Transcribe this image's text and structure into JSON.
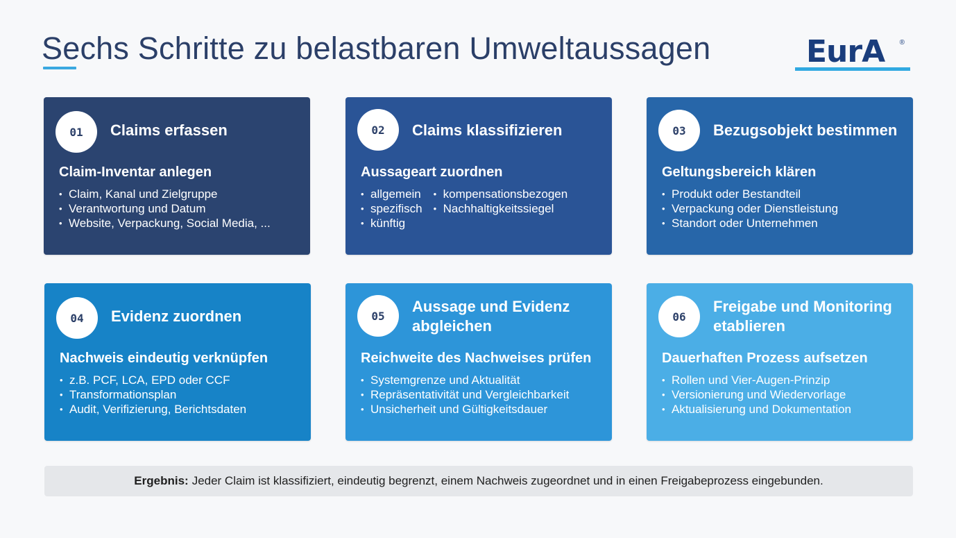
{
  "title": "Sechs Schritte zu belastbaren Umweltaussagen",
  "logo": {
    "text": "EurA",
    "reg": "®"
  },
  "colors": {
    "step1": "#2b4470",
    "step2": "#2a5496",
    "step3": "#2766a9",
    "step4": "#1783c7",
    "step5": "#2d95d9",
    "step6": "#4baee6",
    "accent": "#31a9e1",
    "title": "#2b3f68"
  },
  "steps": [
    {
      "num": "01",
      "title": "Claims erfassen",
      "subtitle": "Claim-Inventar anlegen",
      "bullets": [
        "Claim, Kanal und Zielgruppe",
        "Verantwortung und Datum",
        "Website, Verpackung, Social Media, ..."
      ]
    },
    {
      "num": "02",
      "title": "Claims klassifizieren",
      "subtitle": "Aussageart zuordnen",
      "bullets_col1": [
        "allgemein",
        "spezifisch",
        "künftig"
      ],
      "bullets_col2": [
        "kompensationsbezogen",
        "Nachhaltigkeitssiegel"
      ]
    },
    {
      "num": "03",
      "title": "Bezugsobjekt bestimmen",
      "subtitle": "Geltungsbereich klären",
      "bullets": [
        "Produkt oder Bestandteil",
        "Verpackung oder Dienstleistung",
        "Standort oder Unternehmen"
      ]
    },
    {
      "num": "04",
      "title": "Evidenz zuordnen",
      "subtitle": "Nachweis eindeutig verknüpfen",
      "bullets": [
        "z.B. PCF, LCA, EPD oder CCF",
        "Transformationsplan",
        "Audit, Verifizierung, Berichtsdaten"
      ]
    },
    {
      "num": "05",
      "title": "Aussage und Evidenz abgleichen",
      "subtitle": "Reichweite des Nachweises prüfen",
      "bullets": [
        "Systemgrenze und Aktualität",
        "Repräsentativität und Vergleichbarkeit",
        "Unsicherheit und Gültigkeitsdauer"
      ]
    },
    {
      "num": "06",
      "title": "Freigabe und Monitoring etablieren",
      "subtitle": "Dauerhaften Prozess aufsetzen",
      "bullets": [
        "Rollen und Vier-Augen-Prinzip",
        "Versionierung und Wiedervorlage",
        "Aktualisierung und Dokumentation"
      ]
    }
  ],
  "result": {
    "label": "Ergebnis:",
    "text": "Jeder Claim ist klassifiziert, eindeutig begrenzt, einem Nachweis zugeordnet und in einen Freigabeprozess eingebunden."
  }
}
